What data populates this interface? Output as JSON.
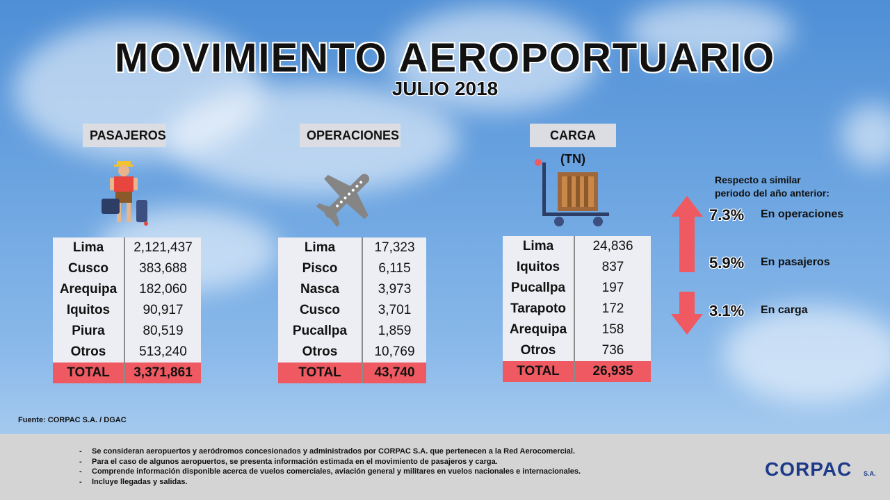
{
  "header": {
    "title": "MOVIMIENTO AEROPORTUARIO",
    "subtitle": "JULIO 2018"
  },
  "sections": {
    "pasajeros": {
      "label": "PASAJEROS",
      "rows": [
        {
          "name": "Lima",
          "value": "2,121,437"
        },
        {
          "name": "Cusco",
          "value": "383,688"
        },
        {
          "name": "Arequipa",
          "value": "182,060"
        },
        {
          "name": "Iquitos",
          "value": "90,917"
        },
        {
          "name": "Piura",
          "value": "80,519"
        },
        {
          "name": "Otros",
          "value": "513,240"
        }
      ],
      "total_label": "TOTAL",
      "total_value": "3,371,861"
    },
    "operaciones": {
      "label": "OPERACIONES",
      "rows": [
        {
          "name": "Lima",
          "value": "17,323"
        },
        {
          "name": "Pisco",
          "value": "6,115"
        },
        {
          "name": "Nasca",
          "value": "3,973"
        },
        {
          "name": "Cusco",
          "value": "3,701"
        },
        {
          "name": "Pucallpa",
          "value": "1,859"
        },
        {
          "name": "Otros",
          "value": "10,769"
        }
      ],
      "total_label": "TOTAL",
      "total_value": "43,740"
    },
    "carga": {
      "label": "CARGA (TN)",
      "rows": [
        {
          "name": "Lima",
          "value": "24,836"
        },
        {
          "name": "Iquitos",
          "value": "837"
        },
        {
          "name": "Pucallpa",
          "value": "197"
        },
        {
          "name": "Tarapoto",
          "value": "172"
        },
        {
          "name": "Arequipa",
          "value": "158"
        },
        {
          "name": "Otros",
          "value": "736"
        }
      ],
      "total_label": "TOTAL",
      "total_value": "26,935"
    }
  },
  "comparison": {
    "note_line1": "Respecto a similar",
    "note_line2": "periodo del año anterior:",
    "items": [
      {
        "value": "7.3%",
        "label": "En operaciones",
        "direction": "up"
      },
      {
        "value": "5.9%",
        "label": "En pasajeros",
        "direction": "up"
      },
      {
        "value": "3.1%",
        "label": "En carga",
        "direction": "down"
      }
    ],
    "arrow_color": "#ef5a62"
  },
  "source": "Fuente: CORPAC S.A. / DGAC",
  "footer_notes": [
    "Se consideran aeropuertos y aeródromos concesionados  y administrados  por CORPAC S.A.  que pertenecen a la Red Aerocomercial.",
    "Para el caso de algunos aeropuertos, se presenta información  estimada en el movimiento de pasajeros  y carga.",
    "Comprende información  disponible  acerca  de vuelos comerciales, aviación  general y militares en vuelos nacionales  e internacionales.",
    "Incluye  llegadas  y salidas."
  ],
  "logo": {
    "text": "CORPAC",
    "suffix": "S.A."
  },
  "icons": [
    "tourist-icon",
    "airplane-icon",
    "cargo-cart-icon",
    "up-arrow-icon",
    "down-arrow-icon"
  ]
}
